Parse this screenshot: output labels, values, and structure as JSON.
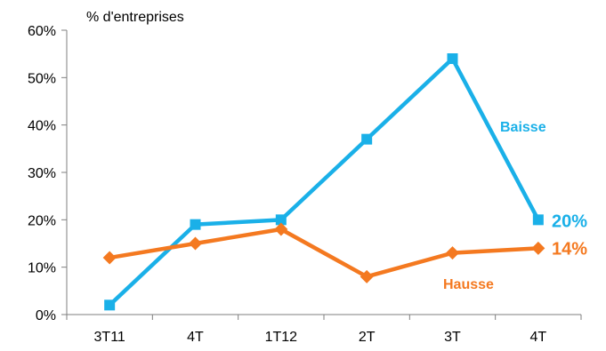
{
  "chart_data": {
    "type": "line",
    "ylabel": "% d'entreprises",
    "xlabel": "",
    "title": "",
    "categories": [
      "3T11",
      "4T",
      "1T12",
      "2T",
      "3T",
      "4T"
    ],
    "ylim": [
      0,
      60
    ],
    "yticks": [
      0,
      10,
      20,
      30,
      40,
      50,
      60
    ],
    "ytick_labels": [
      "0%",
      "10%",
      "20%",
      "30%",
      "40%",
      "50%",
      "60%"
    ],
    "grid": false,
    "series": [
      {
        "name": "Baisse",
        "color": "#1ab0e8",
        "marker": "square",
        "values": [
          2,
          19,
          20,
          37,
          54,
          20
        ],
        "end_label": "20%"
      },
      {
        "name": "Hausse",
        "color": "#f47920",
        "marker": "diamond",
        "values": [
          12,
          15,
          18,
          8,
          13,
          14
        ],
        "end_label": "14%"
      }
    ]
  }
}
